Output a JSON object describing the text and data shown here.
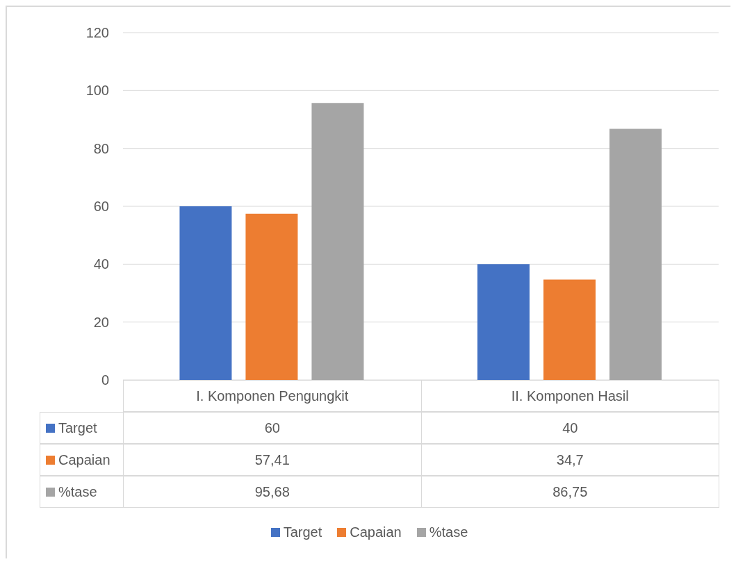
{
  "chart_data": {
    "type": "bar",
    "categories": [
      "I. Komponen Pengungkit",
      "II. Komponen Hasil"
    ],
    "series": [
      {
        "name": "Target",
        "color": "#4472c4",
        "values": [
          60,
          40
        ],
        "value_labels": [
          "60",
          "40"
        ]
      },
      {
        "name": "Capaian",
        "color": "#ed7d31",
        "values": [
          57.41,
          34.7
        ],
        "value_labels": [
          "57,41",
          "34,7"
        ]
      },
      {
        "name": "%tase",
        "color": "#a5a5a5",
        "values": [
          95.68,
          86.75
        ],
        "value_labels": [
          "95,68",
          "86,75"
        ]
      }
    ],
    "ylim": [
      0,
      120
    ],
    "yticks": [
      0,
      20,
      40,
      60,
      80,
      100,
      120
    ],
    "grid": "y",
    "legend": "bottom"
  }
}
